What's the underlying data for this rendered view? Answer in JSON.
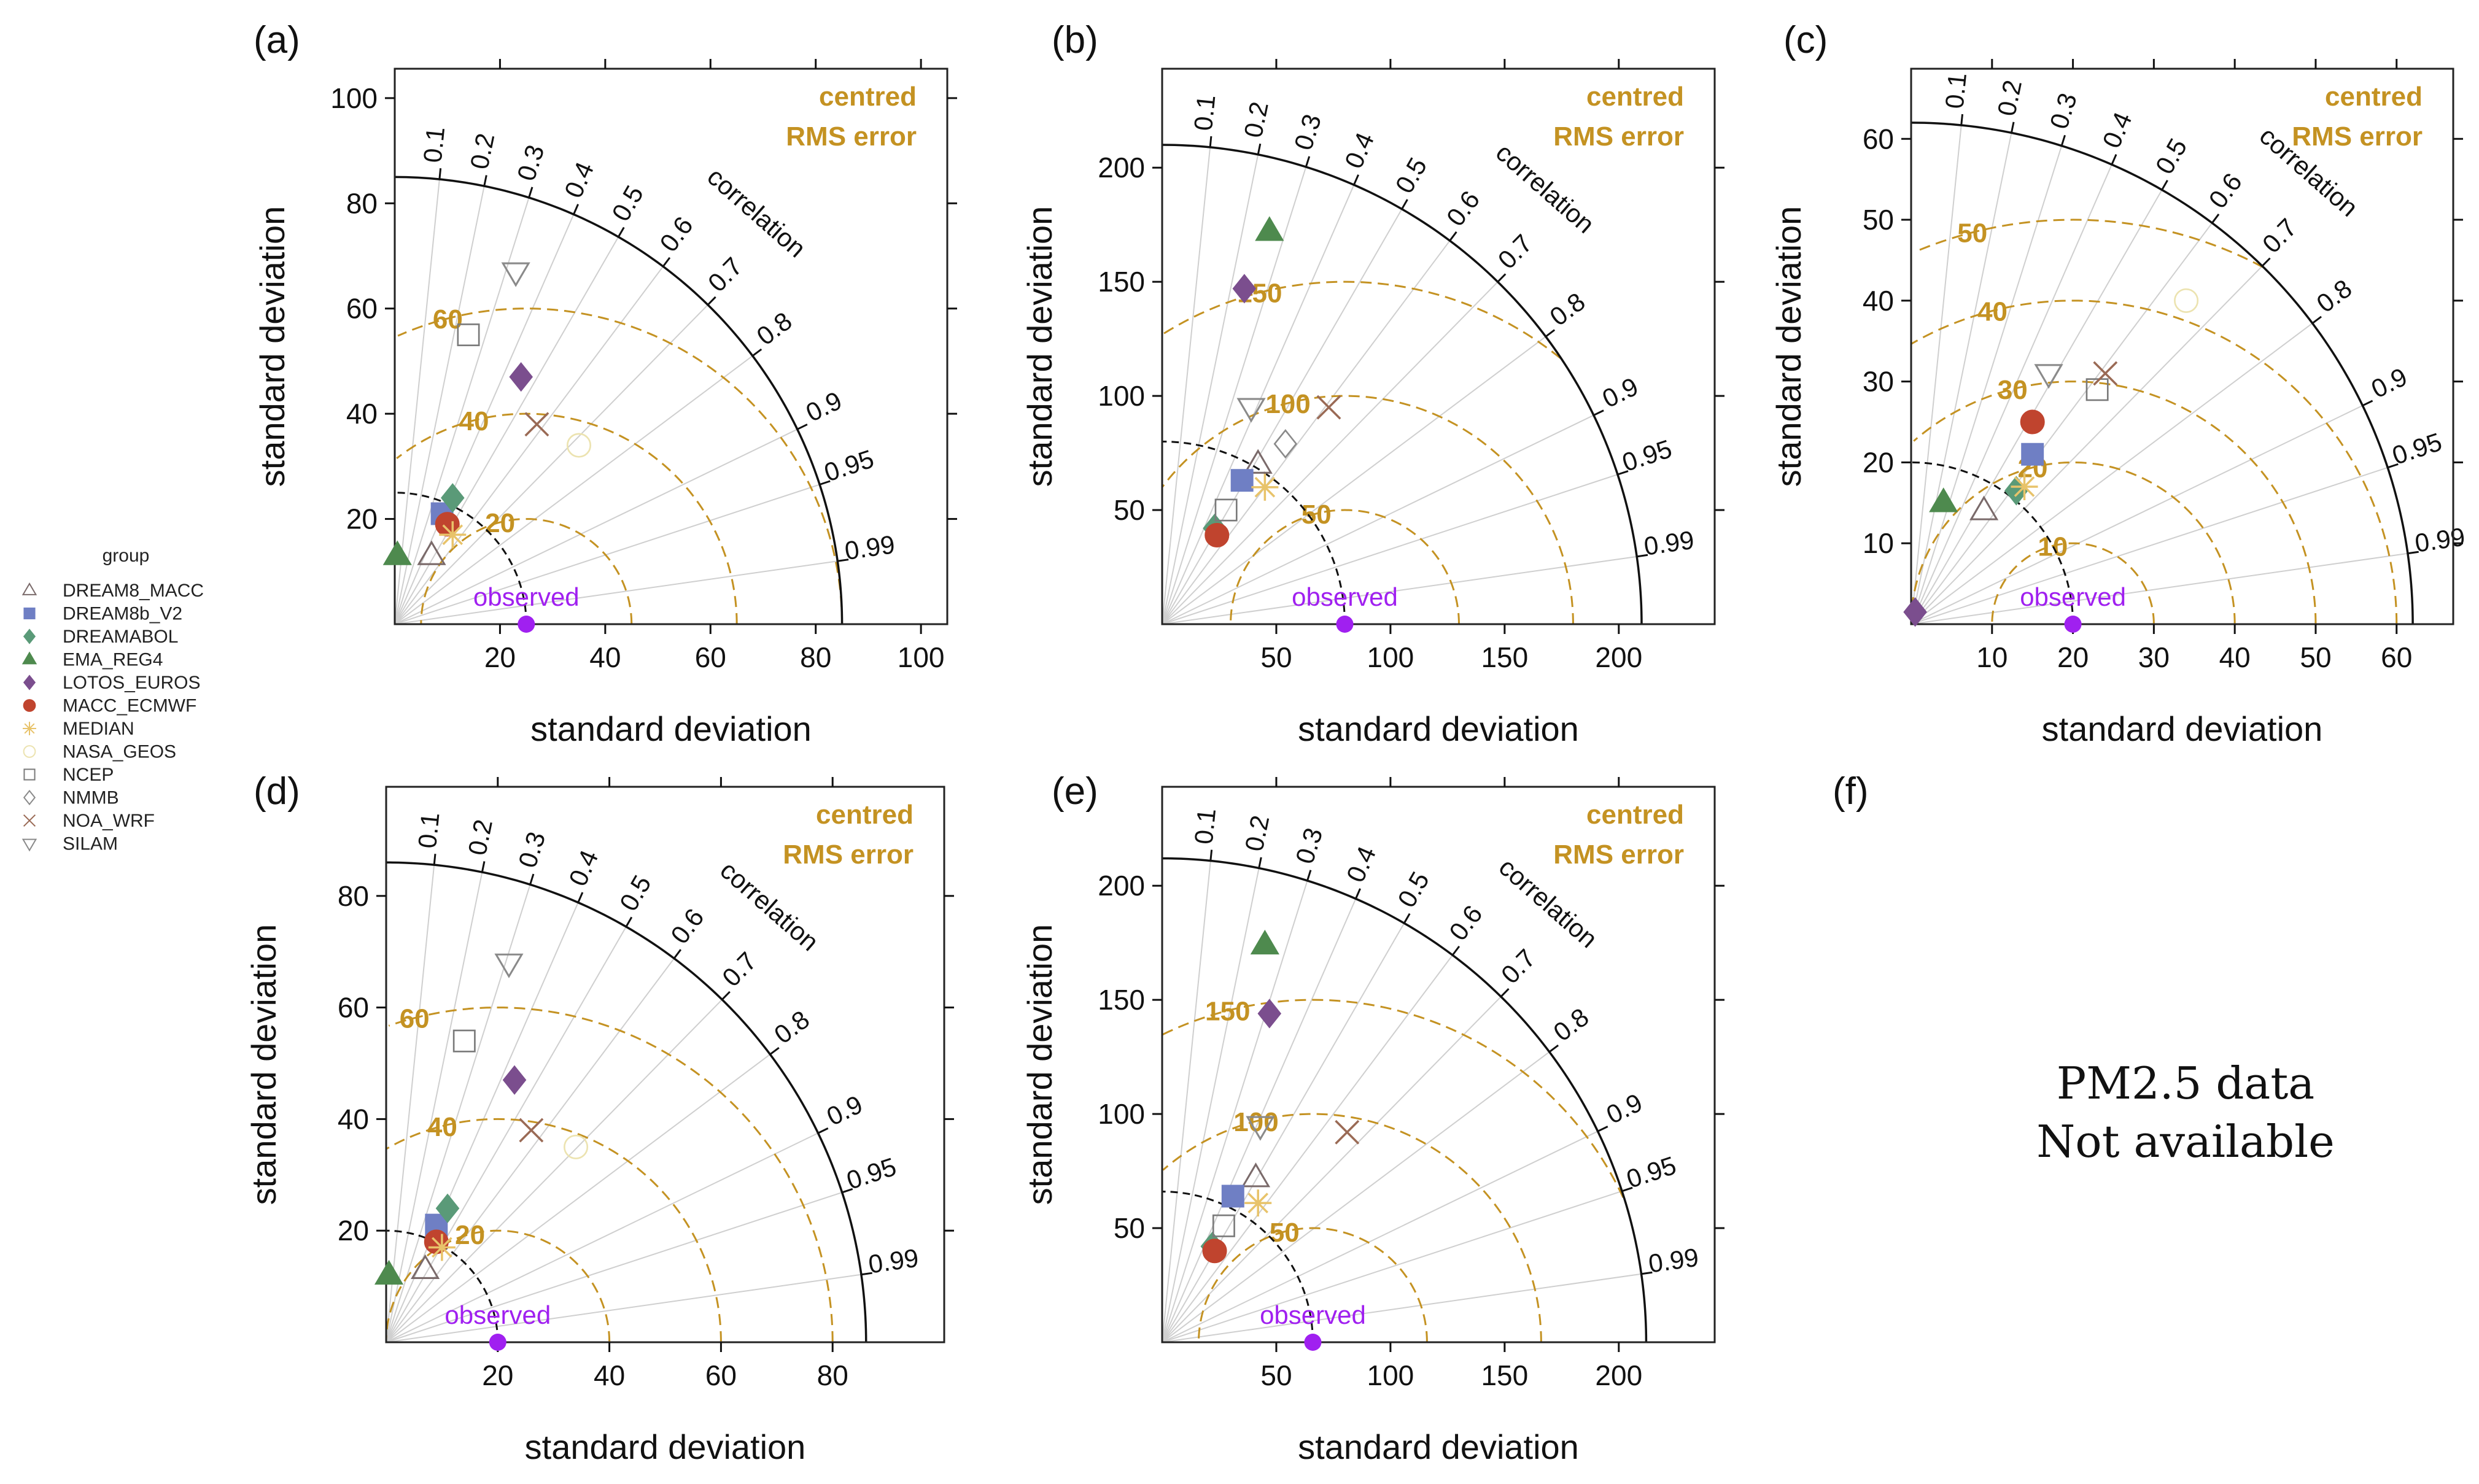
{
  "colors": {
    "rms": "#c49222",
    "observed": "#a020f0",
    "axis": "#222222",
    "grid": "#cfcfcf"
  },
  "legend": {
    "title": "group",
    "items": [
      {
        "name": "DREAM8_MACC",
        "marker": "triangle-up-open",
        "color": "#7a6a6a"
      },
      {
        "name": "DREAM8b_V2",
        "marker": "square-filled",
        "color": "#6f7fc4"
      },
      {
        "name": "DREAMABOL",
        "marker": "diamond-filled",
        "color": "#5a9a78"
      },
      {
        "name": "EMA_REG4",
        "marker": "triangle-up-filled",
        "color": "#4e8a4e"
      },
      {
        "name": "LOTOS_EUROS",
        "marker": "diamond-filled",
        "color": "#7b4e8e"
      },
      {
        "name": "MACC_ECMWF",
        "marker": "circle-filled",
        "color": "#c0442e"
      },
      {
        "name": "MEDIAN",
        "marker": "asterisk",
        "color": "#e8c36a"
      },
      {
        "name": "NASA_GEOS",
        "marker": "circle-open",
        "color": "#ece3b0"
      },
      {
        "name": "NCEP",
        "marker": "square-open",
        "color": "#7a7a7a"
      },
      {
        "name": "NMMB",
        "marker": "diamond-open",
        "color": "#8a8a8a"
      },
      {
        "name": "NOA_WRF",
        "marker": "x",
        "color": "#9a6a55"
      },
      {
        "name": "SILAM",
        "marker": "triangle-down-open",
        "color": "#8a8a8a"
      }
    ]
  },
  "chart_data": [
    {
      "panel": "(a)",
      "type": "scatter",
      "xlabel": "standard deviation",
      "ylabel": "standard deviation",
      "xticks": [
        20,
        40,
        60,
        80,
        100
      ],
      "yticks": [
        20,
        40,
        60,
        80,
        100
      ],
      "lim": [
        0,
        105
      ],
      "outer_arc": 85,
      "observed_sd": 25,
      "observed_label": "observed",
      "rms_contours": [
        20,
        40,
        60
      ],
      "rms_text": [
        "centred",
        "RMS error"
      ],
      "correlation_title": "correlation",
      "correlation_ticks": [
        "0.1",
        "0.2",
        "0.3",
        "0.4",
        "0.5",
        "0.6",
        "0.7",
        "0.8",
        "0.9",
        "0.95",
        "0.99"
      ],
      "points": [
        {
          "model": "DREAM8_MACC",
          "x": 7,
          "y": 13
        },
        {
          "model": "DREAM8b_V2",
          "x": 9,
          "y": 21
        },
        {
          "model": "DREAMABOL",
          "x": 11,
          "y": 24
        },
        {
          "model": "EMA_REG4",
          "x": 0.5,
          "y": 13
        },
        {
          "model": "LOTOS_EUROS",
          "x": 24,
          "y": 47
        },
        {
          "model": "MACC_ECMWF",
          "x": 10,
          "y": 19
        },
        {
          "model": "MEDIAN",
          "x": 11,
          "y": 17
        },
        {
          "model": "NASA_GEOS",
          "x": 35,
          "y": 34
        },
        {
          "model": "NCEP",
          "x": 14,
          "y": 55
        },
        {
          "model": "NOA_WRF",
          "x": 27,
          "y": 38
        },
        {
          "model": "SILAM",
          "x": 23,
          "y": 67
        }
      ]
    },
    {
      "panel": "(b)",
      "type": "scatter",
      "xlabel": "standard deviation",
      "ylabel": "standard deviation",
      "xticks": [
        50,
        100,
        150,
        200
      ],
      "yticks": [
        50,
        100,
        150,
        200
      ],
      "lim": [
        0,
        242
      ],
      "outer_arc": 210,
      "observed_sd": 80,
      "observed_label": "observed",
      "rms_contours": [
        50,
        100,
        150
      ],
      "rms_text": [
        "centred",
        "RMS error"
      ],
      "correlation_title": "correlation",
      "correlation_ticks": [
        "0.1",
        "0.2",
        "0.3",
        "0.4",
        "0.5",
        "0.6",
        "0.7",
        "0.8",
        "0.9",
        "0.95",
        "0.99"
      ],
      "points": [
        {
          "model": "DREAM8_MACC",
          "x": 42,
          "y": 70
        },
        {
          "model": "DREAM8b_V2",
          "x": 35,
          "y": 63
        },
        {
          "model": "DREAMABOL",
          "x": 23,
          "y": 42
        },
        {
          "model": "EMA_REG4",
          "x": 47,
          "y": 172
        },
        {
          "model": "LOTOS_EUROS",
          "x": 36,
          "y": 147
        },
        {
          "model": "MACC_ECMWF",
          "x": 24,
          "y": 39
        },
        {
          "model": "MEDIAN",
          "x": 45,
          "y": 60
        },
        {
          "model": "NCEP",
          "x": 28,
          "y": 50
        },
        {
          "model": "NMMB",
          "x": 54,
          "y": 79
        },
        {
          "model": "NOA_WRF",
          "x": 73,
          "y": 95
        },
        {
          "model": "SILAM",
          "x": 39,
          "y": 95
        }
      ]
    },
    {
      "panel": "(c)",
      "type": "scatter",
      "xlabel": "standard deviation",
      "ylabel": "standard deviation",
      "xticks": [
        10,
        20,
        30,
        40,
        50,
        60
      ],
      "yticks": [
        10,
        20,
        30,
        40,
        50,
        60
      ],
      "lim": [
        0,
        67
      ],
      "outer_arc": 62,
      "observed_sd": 20,
      "observed_label": "observed",
      "rms_contours": [
        10,
        20,
        30,
        40,
        50
      ],
      "rms_text": [
        "centred",
        "RMS error"
      ],
      "correlation_title": "correlation",
      "correlation_ticks": [
        "0.1",
        "0.2",
        "0.3",
        "0.4",
        "0.5",
        "0.6",
        "0.7",
        "0.8",
        "0.9",
        "0.95",
        "0.99"
      ],
      "points": [
        {
          "model": "DREAM8_MACC",
          "x": 9,
          "y": 14
        },
        {
          "model": "DREAM8b_V2",
          "x": 15,
          "y": 21
        },
        {
          "model": "DREAMABOL",
          "x": 13,
          "y": 16.5
        },
        {
          "model": "EMA_REG4",
          "x": 4,
          "y": 15
        },
        {
          "model": "LOTOS_EUROS",
          "x": 0.5,
          "y": 1.5
        },
        {
          "model": "MACC_ECMWF",
          "x": 15,
          "y": 25
        },
        {
          "model": "MEDIAN",
          "x": 14,
          "y": 17
        },
        {
          "model": "NASA_GEOS",
          "x": 34,
          "y": 40
        },
        {
          "model": "NCEP",
          "x": 23,
          "y": 29
        },
        {
          "model": "NOA_WRF",
          "x": 24,
          "y": 31
        },
        {
          "model": "SILAM",
          "x": 17,
          "y": 31
        }
      ]
    },
    {
      "panel": "(d)",
      "type": "scatter",
      "xlabel": "standard deviation",
      "ylabel": "standard deviation",
      "xticks": [
        20,
        40,
        60,
        80
      ],
      "yticks": [
        20,
        40,
        60,
        80
      ],
      "lim": [
        0,
        100
      ],
      "outer_arc": 86,
      "observed_sd": 20,
      "observed_label": "observed",
      "rms_contours": [
        20,
        40,
        60
      ],
      "rms_text": [
        "centred",
        "RMS error"
      ],
      "correlation_title": "correlation",
      "correlation_ticks": [
        "0.1",
        "0.2",
        "0.3",
        "0.4",
        "0.5",
        "0.6",
        "0.7",
        "0.8",
        "0.9",
        "0.95",
        "0.99"
      ],
      "points": [
        {
          "model": "DREAM8_MACC",
          "x": 7,
          "y": 13
        },
        {
          "model": "DREAM8b_V2",
          "x": 9,
          "y": 21
        },
        {
          "model": "DREAMABOL",
          "x": 11,
          "y": 24
        },
        {
          "model": "EMA_REG4",
          "x": 0.5,
          "y": 12
        },
        {
          "model": "LOTOS_EUROS",
          "x": 23,
          "y": 47
        },
        {
          "model": "MACC_ECMWF",
          "x": 9,
          "y": 18
        },
        {
          "model": "MEDIAN",
          "x": 10,
          "y": 17
        },
        {
          "model": "NASA_GEOS",
          "x": 34,
          "y": 35
        },
        {
          "model": "NCEP",
          "x": 14,
          "y": 54
        },
        {
          "model": "NOA_WRF",
          "x": 26,
          "y": 38
        },
        {
          "model": "SILAM",
          "x": 22,
          "y": 68
        }
      ]
    },
    {
      "panel": "(e)",
      "type": "scatter",
      "xlabel": "standard deviation",
      "ylabel": "standard deviation",
      "xticks": [
        50,
        100,
        150,
        200
      ],
      "yticks": [
        50,
        100,
        150,
        200
      ],
      "lim": [
        0,
        242
      ],
      "outer_arc": 212,
      "observed_sd": 66,
      "observed_label": "observed",
      "rms_contours": [
        50,
        100,
        150
      ],
      "rms_text": [
        "centred",
        "RMS error"
      ],
      "correlation_title": "correlation",
      "correlation_ticks": [
        "0.1",
        "0.2",
        "0.3",
        "0.4",
        "0.5",
        "0.6",
        "0.7",
        "0.8",
        "0.9",
        "0.95",
        "0.99"
      ],
      "points": [
        {
          "model": "DREAM8_MACC",
          "x": 41,
          "y": 72
        },
        {
          "model": "DREAM8b_V2",
          "x": 31,
          "y": 64
        },
        {
          "model": "DREAMABOL",
          "x": 22,
          "y": 42
        },
        {
          "model": "EMA_REG4",
          "x": 45,
          "y": 174
        },
        {
          "model": "LOTOS_EUROS",
          "x": 47,
          "y": 144
        },
        {
          "model": "MACC_ECMWF",
          "x": 23,
          "y": 40
        },
        {
          "model": "MEDIAN",
          "x": 42,
          "y": 61
        },
        {
          "model": "NCEP",
          "x": 27,
          "y": 51
        },
        {
          "model": "NOA_WRF",
          "x": 81,
          "y": 92
        },
        {
          "model": "SILAM",
          "x": 43,
          "y": 95
        }
      ]
    }
  ],
  "panel_f": {
    "letter": "(f)",
    "line1": "PM2.5  data",
    "line2": "Not available"
  }
}
